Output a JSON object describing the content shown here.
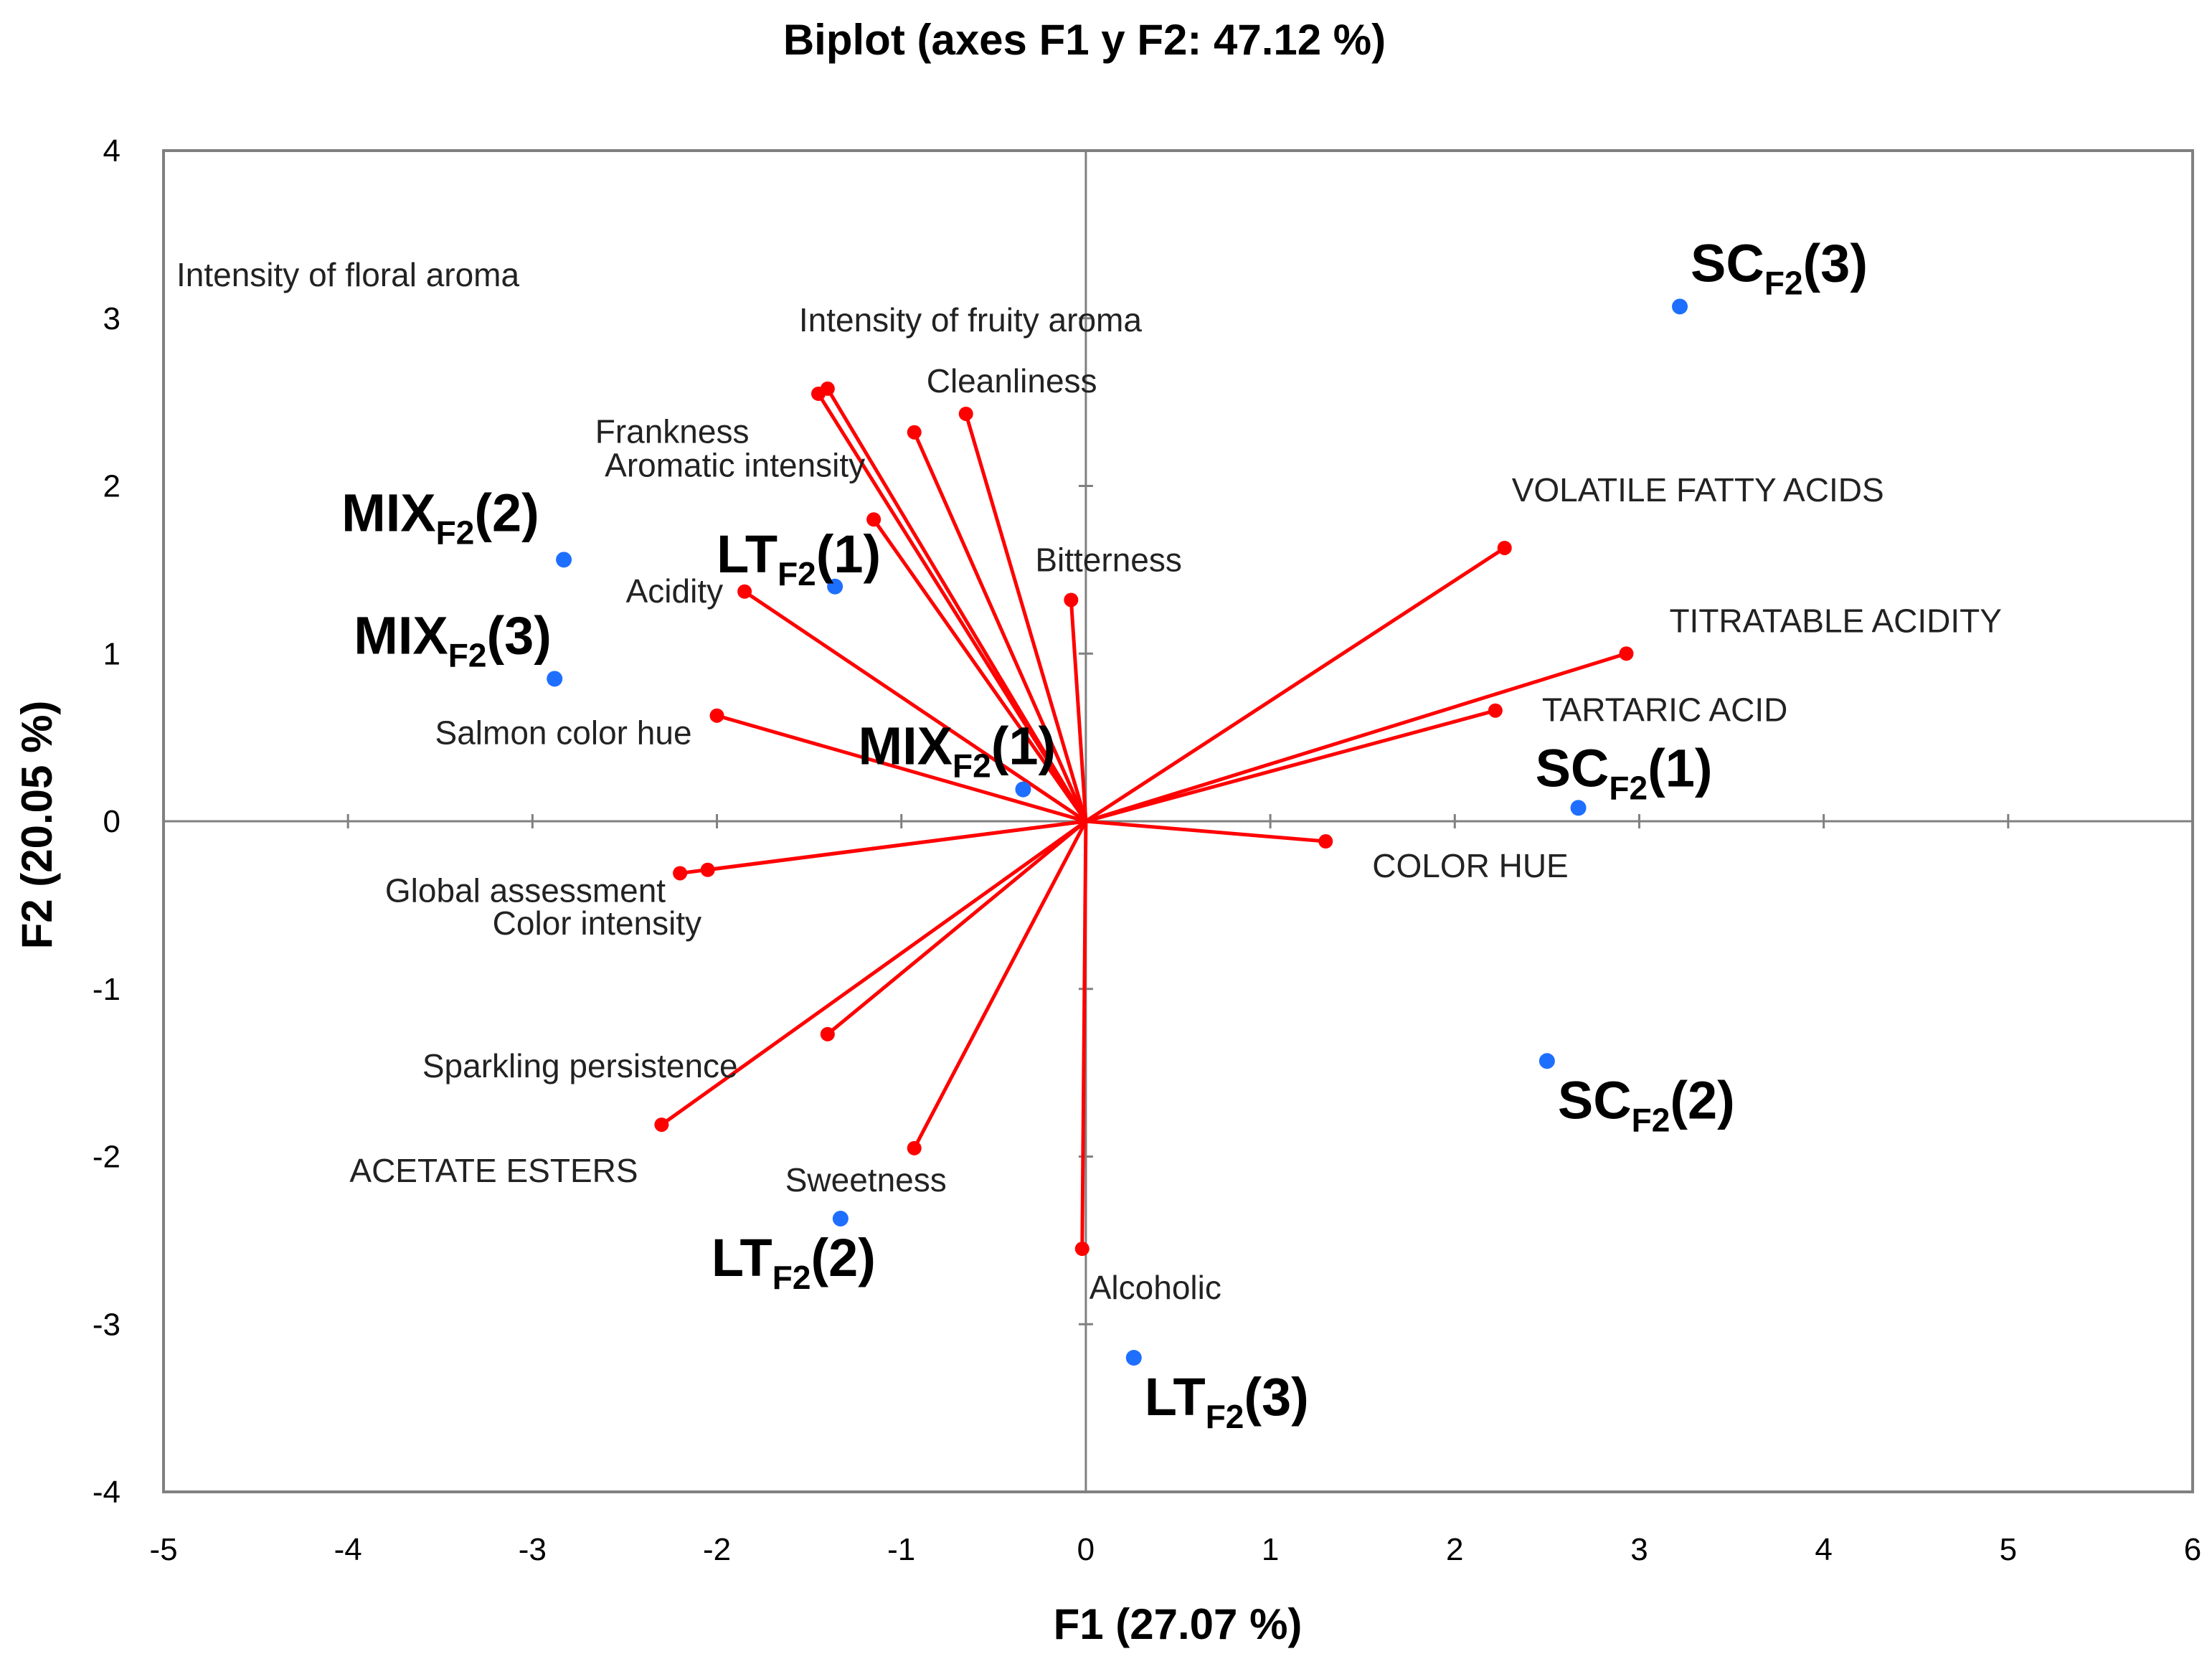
{
  "chart_data": {
    "type": "scatter",
    "title": "Biplot (axes F1 y F2: 47.12 %)",
    "xlabel": "F1 (27.07 %)",
    "ylabel": "F2 (20.05 %)",
    "xlim": [
      -5,
      6
    ],
    "ylim": [
      -4,
      4
    ],
    "x_ticks": [
      -5,
      -4,
      -3,
      -2,
      -1,
      0,
      1,
      2,
      3,
      4,
      5,
      6
    ],
    "y_ticks": [
      -4,
      -3,
      -2,
      -1,
      0,
      1,
      2,
      3,
      4
    ],
    "grid": false,
    "vector_color": "#ff0000",
    "point_color": "#1f6fff",
    "variables": [
      {
        "name": "Intensity of floral aroma",
        "x": -1.45,
        "y": 2.55
      },
      {
        "name": "Intensity of fruity aroma",
        "x": -1.4,
        "y": 2.58
      },
      {
        "name": "Cleanliness",
        "x": -0.65,
        "y": 2.43
      },
      {
        "name": "Frankness",
        "x": -0.93,
        "y": 2.32
      },
      {
        "name": "Aromatic intensity",
        "x": -1.15,
        "y": 1.8
      },
      {
        "name": "Acidity",
        "x": -1.85,
        "y": 1.37
      },
      {
        "name": "Bitterness",
        "x": -0.08,
        "y": 1.32
      },
      {
        "name": "Salmon color hue",
        "x": -2.0,
        "y": 0.63
      },
      {
        "name": "Global assessment",
        "x": -2.2,
        "y": -0.31
      },
      {
        "name": "Color intensity",
        "x": -2.05,
        "y": -0.29
      },
      {
        "name": "Sparkling persistence",
        "x": -1.4,
        "y": -1.27
      },
      {
        "name": "ACETATE ESTERS",
        "x": -2.3,
        "y": -1.81
      },
      {
        "name": "Sweetness",
        "x": -0.93,
        "y": -1.95
      },
      {
        "name": "Alcoholic",
        "x": -0.02,
        "y": -2.55
      },
      {
        "name": "VOLATILE FATTY ACIDS",
        "x": 2.27,
        "y": 1.63
      },
      {
        "name": "TITRATABLE ACIDITY",
        "x": 2.93,
        "y": 1.0
      },
      {
        "name": "TARTARIC ACID",
        "x": 2.22,
        "y": 0.66
      },
      {
        "name": "COLOR HUE",
        "x": 1.3,
        "y": -0.12
      }
    ],
    "observations": [
      {
        "main": "SC",
        "sub": "F2",
        "tail": "(3)",
        "x": 3.22,
        "y": 3.07
      },
      {
        "main": "MIX",
        "sub": "F2",
        "tail": "(2)",
        "x": -2.83,
        "y": 1.56
      },
      {
        "main": "LT",
        "sub": "F2",
        "tail": "(1)",
        "x": -1.36,
        "y": 1.4
      },
      {
        "main": "MIX",
        "sub": "F2",
        "tail": "(3)",
        "x": -2.88,
        "y": 0.85
      },
      {
        "main": "MIX",
        "sub": "F2",
        "tail": "(1)",
        "x": -0.34,
        "y": 0.19
      },
      {
        "main": "SC",
        "sub": "F2",
        "tail": "(1)",
        "x": 2.67,
        "y": 0.08
      },
      {
        "main": "SC",
        "sub": "F2",
        "tail": "(2)",
        "x": 2.5,
        "y": -1.43
      },
      {
        "main": "LT",
        "sub": "F2",
        "tail": "(2)",
        "x": -1.33,
        "y": -2.37
      },
      {
        "main": "LT",
        "sub": "F2",
        "tail": "(3)",
        "x": 0.26,
        "y": -3.2
      }
    ]
  }
}
